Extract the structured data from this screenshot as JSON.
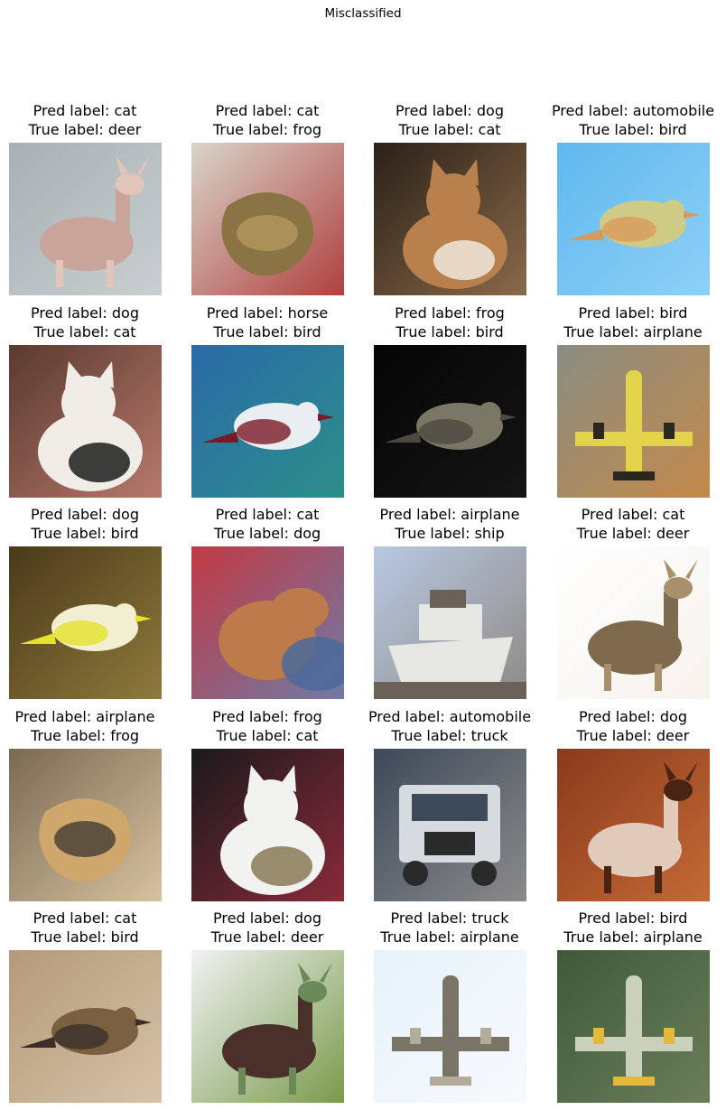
{
  "figure": {
    "suptitle": "Misclassified"
  },
  "grid": [
    {
      "pred": "Pred label: cat",
      "true": "True label: deer",
      "subject": "deer",
      "colors": {
        "bg": "#a8b0b4",
        "bg2": "#c9cfd0",
        "fg": "#c9a49a",
        "fg2": "#e2c4b9"
      }
    },
    {
      "pred": "Pred label: cat",
      "true": "True label: frog",
      "subject": "frog",
      "colors": {
        "bg": "#d8d4c8",
        "bg2": "#b04040",
        "fg": "#8a7444",
        "fg2": "#b59a5d"
      }
    },
    {
      "pred": "Pred label: dog",
      "true": "True label: cat",
      "subject": "cat",
      "colors": {
        "bg": "#2b2118",
        "bg2": "#8a6a4a",
        "fg": "#b7804c",
        "fg2": "#efe7da"
      }
    },
    {
      "pred": "Pred label: automobile",
      "true": "True label: bird",
      "subject": "bird",
      "colors": {
        "bg": "#5fb8ee",
        "bg2": "#8ed0f6",
        "fg": "#cfca86",
        "fg2": "#d89a5a"
      }
    },
    {
      "pred": "Pred label: dog",
      "true": "True label: cat",
      "subject": "cat",
      "colors": {
        "bg": "#5a3a30",
        "bg2": "#b7786a",
        "fg": "#f0ede6",
        "fg2": "#1c1c1c"
      }
    },
    {
      "pred": "Pred label: horse",
      "true": "True label: bird",
      "subject": "bird",
      "colors": {
        "bg": "#2a6aa8",
        "bg2": "#2c8f8a",
        "fg": "#e8eef2",
        "fg2": "#7a1a26"
      }
    },
    {
      "pred": "Pred label: frog",
      "true": "True label: bird",
      "subject": "bird",
      "colors": {
        "bg": "#050505",
        "bg2": "#151515",
        "fg": "#7b7766",
        "fg2": "#4c4a40"
      }
    },
    {
      "pred": "Pred label: bird",
      "true": "True label: airplane",
      "subject": "airplane",
      "colors": {
        "bg": "#8a8c82",
        "bg2": "#c38a4a",
        "fg": "#e3d34a",
        "fg2": "#2a2620"
      }
    },
    {
      "pred": "Pred label: dog",
      "true": "True label: bird",
      "subject": "bird",
      "colors": {
        "bg": "#4a3a1a",
        "bg2": "#8f7a3c",
        "fg": "#f2eed2",
        "fg2": "#e4e22c"
      }
    },
    {
      "pred": "Pred label: cat",
      "true": "True label: dog",
      "subject": "dog",
      "colors": {
        "bg": "#c03a44",
        "bg2": "#6f7aa6",
        "fg": "#bd7a4a",
        "fg2": "#4a6a9a"
      }
    },
    {
      "pred": "Pred label: airplane",
      "true": "True label: ship",
      "subject": "ship",
      "colors": {
        "bg": "#b8c8e2",
        "bg2": "#8e8a86",
        "fg": "#e6e6e2",
        "fg2": "#6a6258"
      }
    },
    {
      "pred": "Pred label: cat",
      "true": "True label: deer",
      "subject": "deer",
      "colors": {
        "bg": "#ffffff",
        "bg2": "#f6f2ec",
        "fg": "#7e6a4c",
        "fg2": "#a8906a"
      }
    },
    {
      "pred": "Pred label: airplane",
      "true": "True label: frog",
      "subject": "frog",
      "colors": {
        "bg": "#7a6a52",
        "bg2": "#d6c2a0",
        "fg": "#cfa66c",
        "fg2": "#3a3530"
      }
    },
    {
      "pred": "Pred label: frog",
      "true": "True label: cat",
      "subject": "cat",
      "colors": {
        "bg": "#1a1a1c",
        "bg2": "#8a2a3a",
        "fg": "#f2f2f0",
        "fg2": "#8a7a56"
      }
    },
    {
      "pred": "Pred label: automobile",
      "true": "True label: truck",
      "subject": "truck",
      "colors": {
        "bg": "#3e4a5a",
        "bg2": "#8a8a8a",
        "fg": "#d6dbe0",
        "fg2": "#2a2a2a"
      }
    },
    {
      "pred": "Pred label: dog",
      "true": "True label: deer",
      "subject": "deer",
      "colors": {
        "bg": "#8a3a1c",
        "bg2": "#c46a36",
        "fg": "#e2cabb",
        "fg2": "#4a2412"
      }
    },
    {
      "pred": "Pred label: cat",
      "true": "True label: bird",
      "subject": "bird",
      "colors": {
        "bg": "#b49a7a",
        "bg2": "#d6c2a6",
        "fg": "#7a6040",
        "fg2": "#3a3028"
      }
    },
    {
      "pred": "Pred label: dog",
      "true": "True label: deer",
      "subject": "deer",
      "colors": {
        "bg": "#f0f2f4",
        "bg2": "#7a9a4a",
        "fg": "#4a3028",
        "fg2": "#6a8a5a"
      }
    },
    {
      "pred": "Pred label: truck",
      "true": "True label: airplane",
      "subject": "airplane",
      "colors": {
        "bg": "#e8f2fa",
        "bg2": "#f6fafe",
        "fg": "#7a7466",
        "fg2": "#b4ac9a"
      }
    },
    {
      "pred": "Pred label: bird",
      "true": "True label: airplane",
      "subject": "airplane",
      "colors": {
        "bg": "#3f5a3a",
        "bg2": "#6a7e5a",
        "fg": "#c9d0bc",
        "fg2": "#e6b83a"
      }
    }
  ]
}
